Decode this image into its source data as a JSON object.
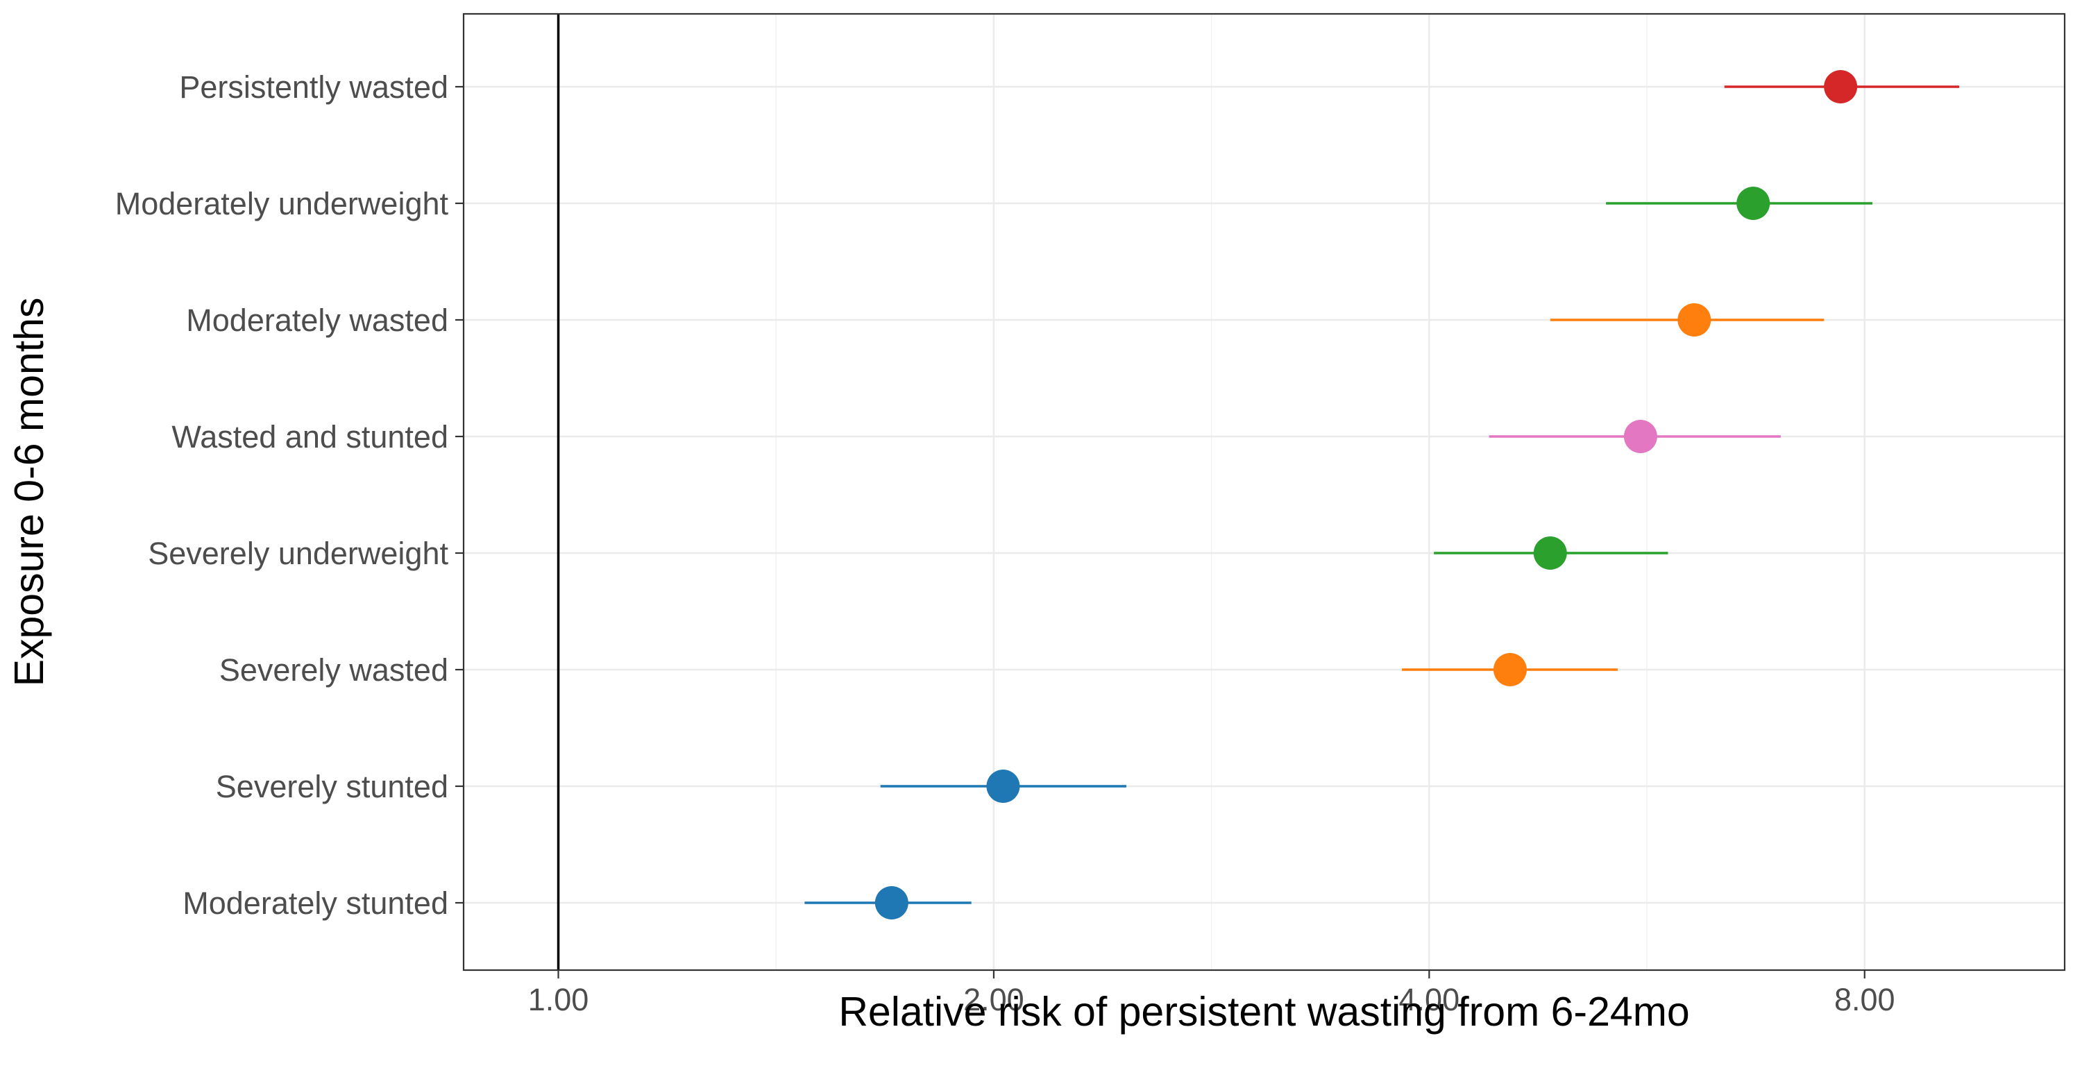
{
  "chart_data": {
    "type": "scatter",
    "subtype": "forest-plot",
    "xlabel": "Relative risk of persistent wasting from 6-24mo",
    "ylabel": "Exposure 0-6 months",
    "x_scale": "log2",
    "xlim": [
      0.86,
      11.0
    ],
    "x_ticks": [
      1.0,
      2.0,
      4.0,
      8.0
    ],
    "x_tick_labels": [
      "1.00",
      "2.00",
      "4.00",
      "8.00"
    ],
    "reference_line": 1.0,
    "grid": true,
    "legend": "none",
    "categories": [
      "Persistently wasted",
      "Moderately underweight",
      "Moderately wasted",
      "Wasted and stunted",
      "Severely underweight",
      "Severely wasted",
      "Severely stunted",
      "Moderately stunted"
    ],
    "points": [
      {
        "label": "Persistently wasted",
        "rr": 7.7,
        "ci_lower": 6.4,
        "ci_upper": 9.3,
        "color": "#d62728"
      },
      {
        "label": "Moderately underweight",
        "rr": 6.7,
        "ci_lower": 5.3,
        "ci_upper": 8.1,
        "color": "#2ca02c"
      },
      {
        "label": "Moderately wasted",
        "rr": 6.1,
        "ci_lower": 4.85,
        "ci_upper": 7.5,
        "color": "#ff7f0e"
      },
      {
        "label": "Wasted and stunted",
        "rr": 5.6,
        "ci_lower": 4.4,
        "ci_upper": 7.0,
        "color": "#e377c2"
      },
      {
        "label": "Severely underweight",
        "rr": 4.85,
        "ci_lower": 4.03,
        "ci_upper": 5.85,
        "color": "#2ca02c"
      },
      {
        "label": "Severely wasted",
        "rr": 4.55,
        "ci_lower": 3.83,
        "ci_upper": 5.4,
        "color": "#ff7f0e"
      },
      {
        "label": "Severely stunted",
        "rr": 2.03,
        "ci_lower": 1.67,
        "ci_upper": 2.47,
        "color": "#1f77b4"
      },
      {
        "label": "Moderately stunted",
        "rr": 1.7,
        "ci_lower": 1.48,
        "ci_upper": 1.93,
        "color": "#1f77b4"
      }
    ]
  }
}
